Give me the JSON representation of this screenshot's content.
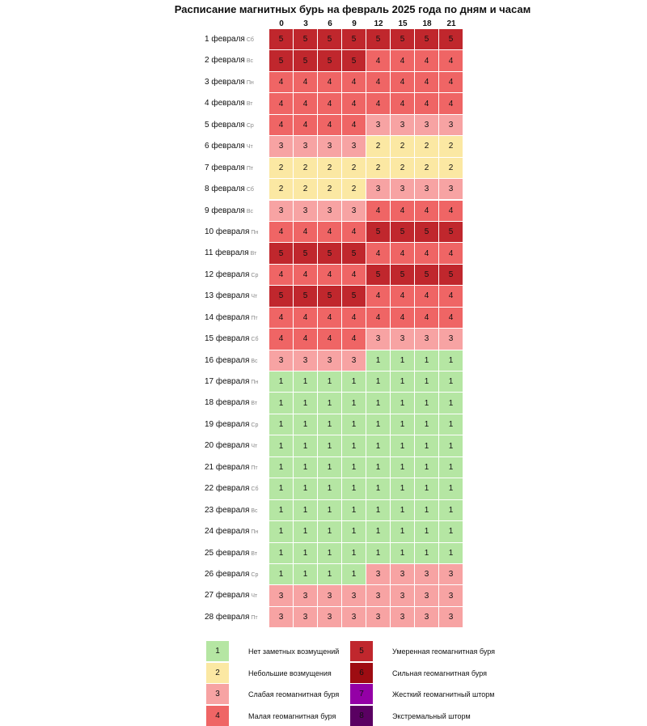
{
  "title": "Расписание магнитных бурь на февраль 2025 года по дням и часам",
  "table": {
    "hours": [
      0,
      3,
      6,
      9,
      12,
      15,
      18,
      21
    ],
    "rows": [
      {
        "date": "1 февраля",
        "weekday": "Сб",
        "values": [
          5,
          5,
          5,
          5,
          5,
          5,
          5,
          5
        ]
      },
      {
        "date": "2 февраля",
        "weekday": "Вс",
        "values": [
          5,
          5,
          5,
          5,
          4,
          4,
          4,
          4
        ]
      },
      {
        "date": "3 февраля",
        "weekday": "Пн",
        "values": [
          4,
          4,
          4,
          4,
          4,
          4,
          4,
          4
        ]
      },
      {
        "date": "4 февраля",
        "weekday": "Вт",
        "values": [
          4,
          4,
          4,
          4,
          4,
          4,
          4,
          4
        ]
      },
      {
        "date": "5 февраля",
        "weekday": "Ср",
        "values": [
          4,
          4,
          4,
          4,
          3,
          3,
          3,
          3
        ]
      },
      {
        "date": "6 февраля",
        "weekday": "Чт",
        "values": [
          3,
          3,
          3,
          3,
          2,
          2,
          2,
          2
        ]
      },
      {
        "date": "7 февраля",
        "weekday": "Пт",
        "values": [
          2,
          2,
          2,
          2,
          2,
          2,
          2,
          2
        ]
      },
      {
        "date": "8 февраля",
        "weekday": "Сб",
        "values": [
          2,
          2,
          2,
          2,
          3,
          3,
          3,
          3
        ]
      },
      {
        "date": "9 февраля",
        "weekday": "Вс",
        "values": [
          3,
          3,
          3,
          3,
          4,
          4,
          4,
          4
        ]
      },
      {
        "date": "10 февраля",
        "weekday": "Пн",
        "values": [
          4,
          4,
          4,
          4,
          5,
          5,
          5,
          5
        ]
      },
      {
        "date": "11 февраля",
        "weekday": "Вт",
        "values": [
          5,
          5,
          5,
          5,
          4,
          4,
          4,
          4
        ]
      },
      {
        "date": "12 февраля",
        "weekday": "Ср",
        "values": [
          4,
          4,
          4,
          4,
          5,
          5,
          5,
          5
        ]
      },
      {
        "date": "13 февраля",
        "weekday": "Чт",
        "values": [
          5,
          5,
          5,
          5,
          4,
          4,
          4,
          4
        ]
      },
      {
        "date": "14 февраля",
        "weekday": "Пт",
        "values": [
          4,
          4,
          4,
          4,
          4,
          4,
          4,
          4
        ]
      },
      {
        "date": "15 февраля",
        "weekday": "Сб",
        "values": [
          4,
          4,
          4,
          4,
          3,
          3,
          3,
          3
        ]
      },
      {
        "date": "16 февраля",
        "weekday": "Вс",
        "values": [
          3,
          3,
          3,
          3,
          1,
          1,
          1,
          1
        ]
      },
      {
        "date": "17 февраля",
        "weekday": "Пн",
        "values": [
          1,
          1,
          1,
          1,
          1,
          1,
          1,
          1
        ]
      },
      {
        "date": "18 февраля",
        "weekday": "Вт",
        "values": [
          1,
          1,
          1,
          1,
          1,
          1,
          1,
          1
        ]
      },
      {
        "date": "19 февраля",
        "weekday": "Ср",
        "values": [
          1,
          1,
          1,
          1,
          1,
          1,
          1,
          1
        ]
      },
      {
        "date": "20 февраля",
        "weekday": "Чт",
        "values": [
          1,
          1,
          1,
          1,
          1,
          1,
          1,
          1
        ]
      },
      {
        "date": "21 февраля",
        "weekday": "Пт",
        "values": [
          1,
          1,
          1,
          1,
          1,
          1,
          1,
          1
        ]
      },
      {
        "date": "22 февраля",
        "weekday": "Сб",
        "values": [
          1,
          1,
          1,
          1,
          1,
          1,
          1,
          1
        ]
      },
      {
        "date": "23 февраля",
        "weekday": "Вс",
        "values": [
          1,
          1,
          1,
          1,
          1,
          1,
          1,
          1
        ]
      },
      {
        "date": "24 февраля",
        "weekday": "Пн",
        "values": [
          1,
          1,
          1,
          1,
          1,
          1,
          1,
          1
        ]
      },
      {
        "date": "25 февраля",
        "weekday": "Вт",
        "values": [
          1,
          1,
          1,
          1,
          1,
          1,
          1,
          1
        ]
      },
      {
        "date": "26 февраля",
        "weekday": "Ср",
        "values": [
          1,
          1,
          1,
          1,
          3,
          3,
          3,
          3
        ]
      },
      {
        "date": "27 февраля",
        "weekday": "Чт",
        "values": [
          3,
          3,
          3,
          3,
          3,
          3,
          3,
          3
        ]
      },
      {
        "date": "28 февраля",
        "weekday": "Пт",
        "values": [
          3,
          3,
          3,
          3,
          3,
          3,
          3,
          3
        ]
      }
    ]
  },
  "legend": [
    {
      "level": 1,
      "color": "#b5e6a3",
      "text": "Нет заметных возмущений"
    },
    {
      "level": 2,
      "color": "#fbe8a3",
      "text": "Небольшие возмущения"
    },
    {
      "level": 3,
      "color": "#f7a3a3",
      "text": "Слабая геомагнитная буря"
    },
    {
      "level": 4,
      "color": "#ef6565",
      "text": "Малая геомагнитная буря"
    },
    {
      "level": 5,
      "color": "#c0272d",
      "text": "Умеренная геомагнитная буря"
    },
    {
      "level": 6,
      "color": "#9e0c12",
      "text": "Сильная геомагнитная буря"
    },
    {
      "level": 7,
      "color": "#9400a6",
      "text": "Жесткий геомагнитный шторм"
    },
    {
      "level": 8,
      "color": "#5a0062",
      "text": "Экстремальный шторм"
    }
  ]
}
